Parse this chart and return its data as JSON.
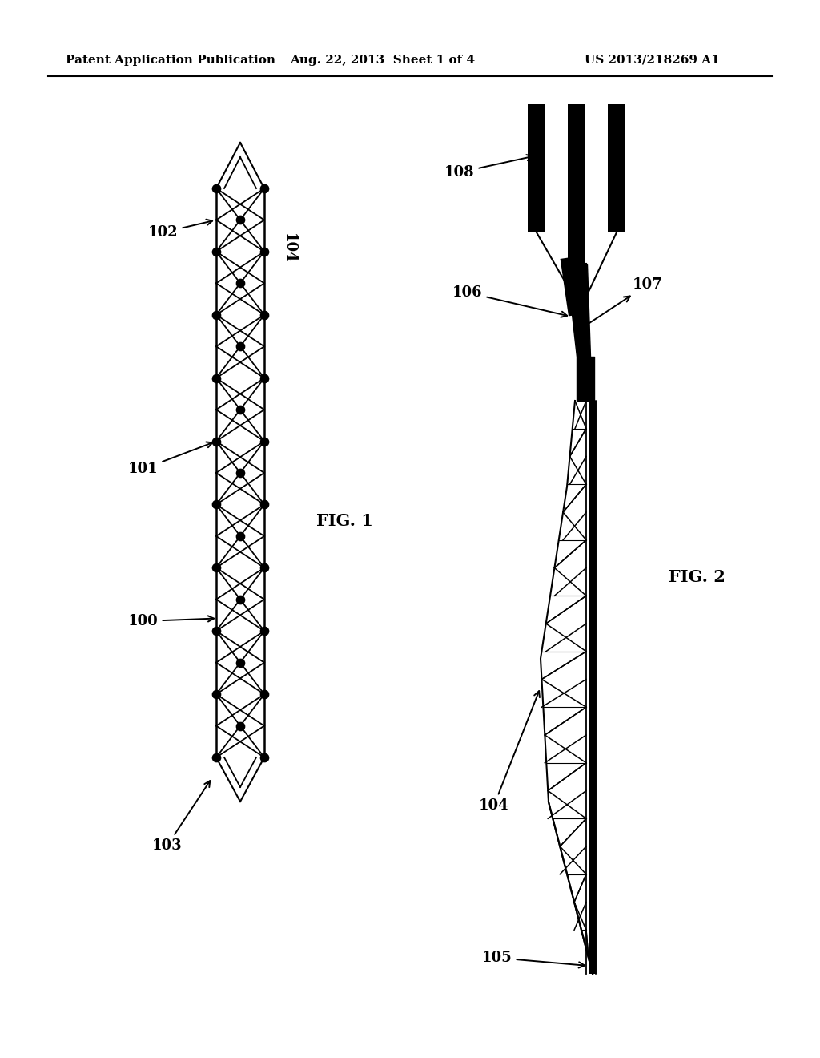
{
  "bg_color": "#ffffff",
  "header_left": "Patent Application Publication",
  "header_mid": "Aug. 22, 2013  Sheet 1 of 4",
  "header_right": "US 2013/218269 A1",
  "header_fontsize": 11,
  "fig1_label": "FIG. 1",
  "fig2_label": "FIG. 2"
}
